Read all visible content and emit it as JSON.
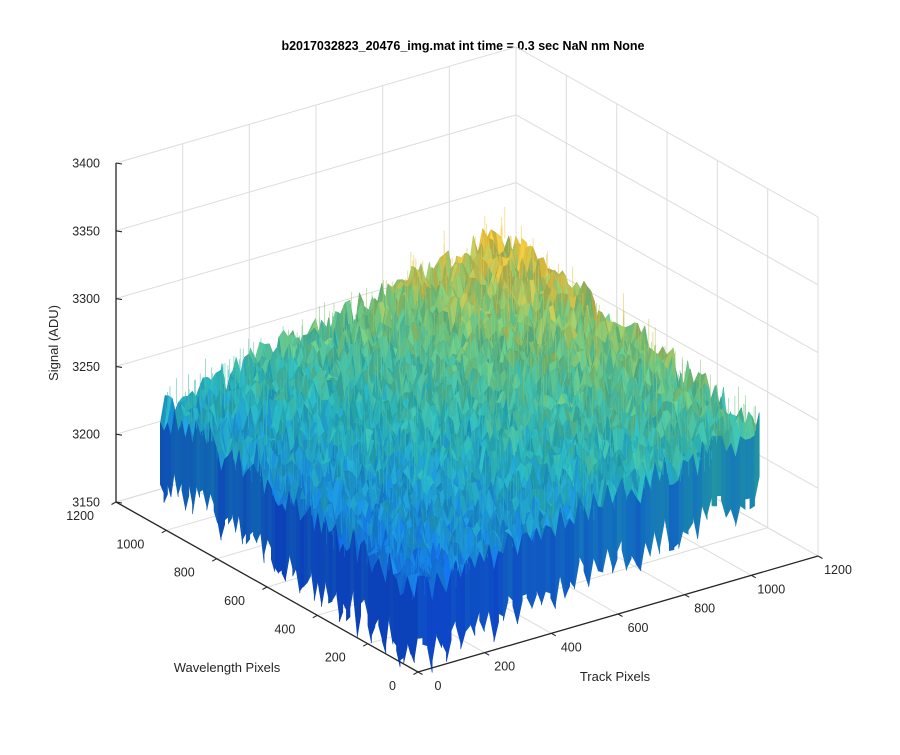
{
  "chart_data": {
    "type": "surface3d",
    "title": "b2017032823_20476_img.mat int time = 0.3 sec  NaN nm None",
    "xlabel": "Track Pixels",
    "ylabel": "Wavelength Pixels",
    "zlabel": "Signal (ADU)",
    "xlim": [
      0,
      1200
    ],
    "ylim": [
      0,
      1200
    ],
    "zlim": [
      3150,
      3400
    ],
    "x_ticks": [
      "0",
      "200",
      "400",
      "600",
      "800",
      "1000",
      "1200"
    ],
    "y_ticks": [
      "0",
      "200",
      "400",
      "600",
      "800",
      "1000",
      "1200"
    ],
    "z_ticks": [
      "3150",
      "3200",
      "3250",
      "3300",
      "3350",
      "3400"
    ],
    "grid": true,
    "colormap": "parula",
    "surface": {
      "x_range": [
        0,
        1024
      ],
      "y_range": [
        0,
        1024
      ],
      "corner_values": {
        "x0_y0": 3210,
        "x1024_y0": 3255,
        "x0_y1024": 3235,
        "x1024_y1024": 3292
      },
      "noise_amplitude": 25
    }
  },
  "colors": {
    "low": "#1560d6",
    "mid": "#2fb4b0",
    "high": "#d9b640",
    "axis": "#262626",
    "grid": "#dcdcdc"
  }
}
